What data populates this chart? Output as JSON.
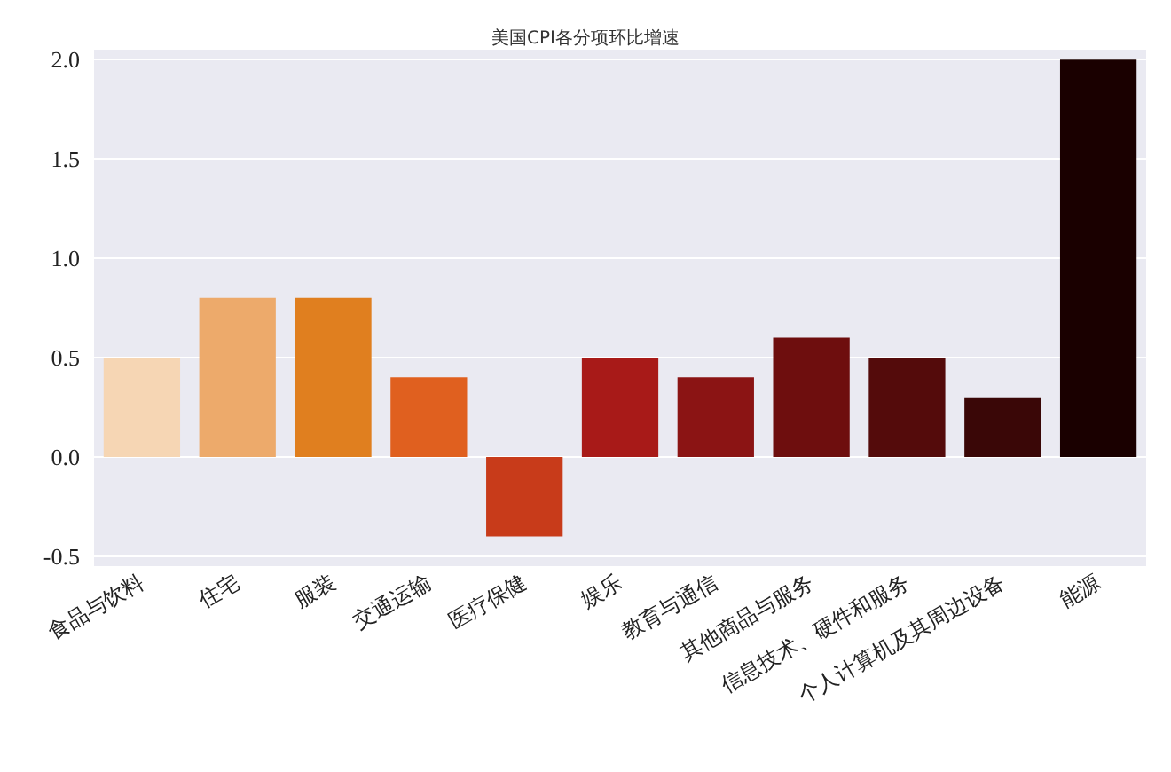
{
  "chart_data": {
    "type": "bar",
    "title": "美国CPI各分项环比增速",
    "categories": [
      "食品与饮料",
      "住宅",
      "服装",
      "交通运输",
      "医疗保健",
      "娱乐",
      "教育与通信",
      "其他商品与服务",
      "信息技术、硬件和服务",
      "个人计算机及其周边设备",
      "能源"
    ],
    "values": [
      0.5,
      0.8,
      0.8,
      0.4,
      -0.4,
      0.5,
      0.4,
      0.6,
      0.5,
      0.3,
      2.0
    ],
    "colors": [
      "#f6d6b4",
      "#edaa6b",
      "#e07f1f",
      "#e0601f",
      "#c83b1a",
      "#a81a18",
      "#8b1414",
      "#6e0e0e",
      "#540b0b",
      "#3a0707",
      "#1a0000"
    ],
    "ylim": [
      -0.55,
      2.05
    ],
    "yticks": [
      {
        "value": -0.5,
        "label": "-0.5"
      },
      {
        "value": 0,
        "label": "0.0"
      },
      {
        "value": 0.5,
        "label": "0.5"
      },
      {
        "value": 1,
        "label": "1.0"
      },
      {
        "value": 1.5,
        "label": "1.5"
      },
      {
        "value": 2,
        "label": "2.0"
      }
    ],
    "grid": "y"
  }
}
